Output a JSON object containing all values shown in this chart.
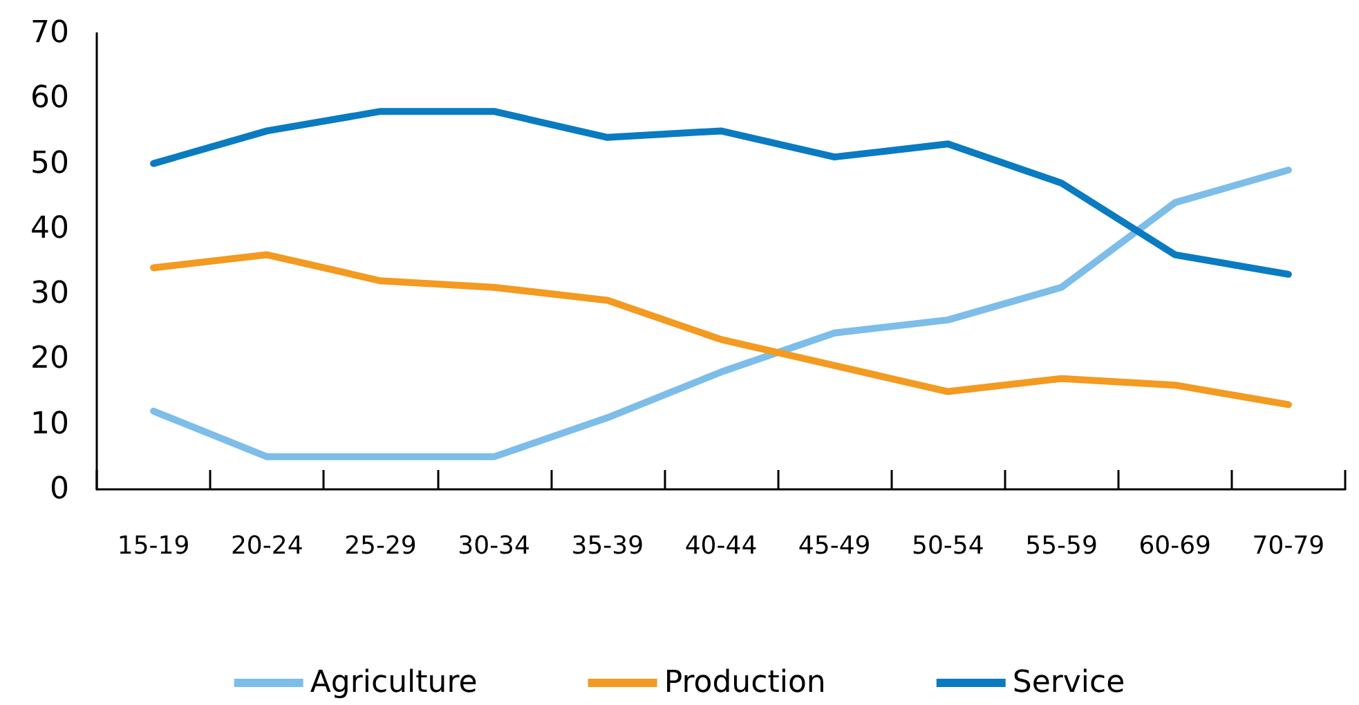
{
  "chart_data": {
    "type": "line",
    "categories": [
      "15-19",
      "20-24",
      "25-29",
      "30-34",
      "35-39",
      "40-44",
      "45-49",
      "50-54",
      "55-59",
      "60-69",
      "70-79"
    ],
    "series": [
      {
        "name": "Agriculture",
        "color": "#7dbde9",
        "values": [
          12,
          5,
          5,
          5,
          11,
          18,
          24,
          26,
          31,
          44,
          49
        ]
      },
      {
        "name": "Production",
        "color": "#f39a21",
        "values": [
          34,
          36,
          32,
          31,
          29,
          23,
          19,
          15,
          17,
          16,
          13
        ]
      },
      {
        "name": "Service",
        "color": "#0a7bc1",
        "values": [
          50,
          55,
          58,
          58,
          54,
          55,
          51,
          53,
          47,
          36,
          33
        ]
      }
    ],
    "ylim": [
      0,
      70
    ],
    "yticks": [
      0,
      10,
      20,
      30,
      40,
      50,
      60,
      70
    ],
    "grid": false,
    "legend": "bottom",
    "marker": "none",
    "line_style": "solid"
  }
}
